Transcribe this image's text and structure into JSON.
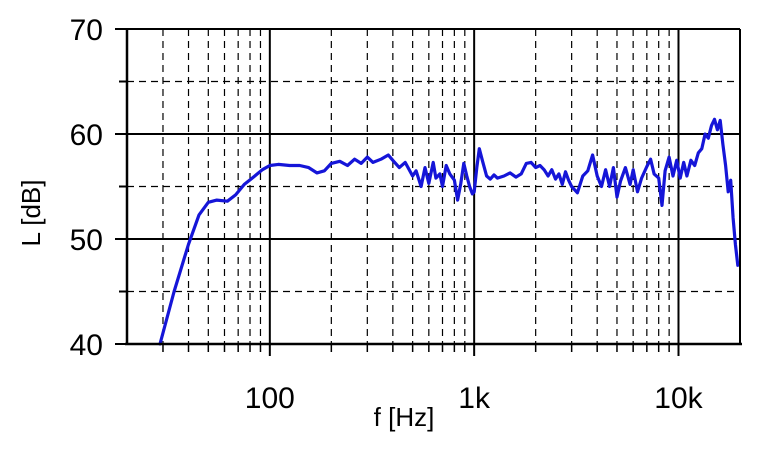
{
  "chart_data": {
    "type": "line",
    "xscale": "log",
    "xlim": [
      20,
      20000
    ],
    "ylim": [
      40,
      70
    ],
    "xlabel": "f [Hz]",
    "ylabel": "L [dB]",
    "x_tick_labels": [
      {
        "value": 100,
        "label": "100"
      },
      {
        "value": 1000,
        "label": "1k"
      },
      {
        "value": 10000,
        "label": "10k"
      }
    ],
    "y_tick_labels": [
      {
        "value": 40,
        "label": "40"
      },
      {
        "value": 50,
        "label": "50"
      },
      {
        "value": 60,
        "label": "60"
      },
      {
        "value": 70,
        "label": "70"
      }
    ],
    "grid": {
      "major_solid": true,
      "minor_dashed": true
    },
    "series": [
      {
        "color": "#1515d8",
        "points": [
          [
            29,
            40.0
          ],
          [
            34,
            45.0
          ],
          [
            40,
            49.5
          ],
          [
            45,
            52.3
          ],
          [
            50,
            53.5
          ],
          [
            55,
            53.7
          ],
          [
            62,
            53.6
          ],
          [
            68,
            54.2
          ],
          [
            75,
            55.2
          ],
          [
            82,
            55.8
          ],
          [
            92,
            56.6
          ],
          [
            100,
            57.0
          ],
          [
            110,
            57.1
          ],
          [
            125,
            57.0
          ],
          [
            140,
            57.0
          ],
          [
            155,
            56.8
          ],
          [
            170,
            56.3
          ],
          [
            185,
            56.5
          ],
          [
            200,
            57.2
          ],
          [
            220,
            57.4
          ],
          [
            240,
            57.0
          ],
          [
            260,
            57.6
          ],
          [
            280,
            57.2
          ],
          [
            300,
            57.8
          ],
          [
            320,
            57.3
          ],
          [
            350,
            57.6
          ],
          [
            380,
            58.0
          ],
          [
            400,
            57.5
          ],
          [
            430,
            56.8
          ],
          [
            460,
            57.3
          ],
          [
            500,
            56.0
          ],
          [
            520,
            56.5
          ],
          [
            550,
            55.0
          ],
          [
            575,
            56.8
          ],
          [
            600,
            55.3
          ],
          [
            630,
            57.3
          ],
          [
            650,
            55.8
          ],
          [
            680,
            56.2
          ],
          [
            700,
            55.0
          ],
          [
            730,
            57.0
          ],
          [
            760,
            56.2
          ],
          [
            800,
            55.6
          ],
          [
            830,
            53.7
          ],
          [
            860,
            55.3
          ],
          [
            890,
            57.2
          ],
          [
            920,
            56.0
          ],
          [
            950,
            55.0
          ],
          [
            980,
            54.3
          ],
          [
            1000,
            54.5
          ],
          [
            1030,
            56.8
          ],
          [
            1060,
            58.6
          ],
          [
            1100,
            57.4
          ],
          [
            1150,
            56.0
          ],
          [
            1200,
            55.7
          ],
          [
            1250,
            56.1
          ],
          [
            1300,
            55.8
          ],
          [
            1400,
            56.0
          ],
          [
            1500,
            56.3
          ],
          [
            1600,
            55.9
          ],
          [
            1700,
            56.2
          ],
          [
            1800,
            57.2
          ],
          [
            1900,
            57.3
          ],
          [
            2000,
            56.8
          ],
          [
            2100,
            57.0
          ],
          [
            2200,
            56.6
          ],
          [
            2300,
            56.0
          ],
          [
            2400,
            56.6
          ],
          [
            2500,
            55.7
          ],
          [
            2600,
            56.2
          ],
          [
            2700,
            55.2
          ],
          [
            2800,
            56.4
          ],
          [
            2900,
            55.6
          ],
          [
            3000,
            55.0
          ],
          [
            3200,
            54.4
          ],
          [
            3400,
            56.0
          ],
          [
            3600,
            56.5
          ],
          [
            3800,
            58.0
          ],
          [
            4000,
            56.0
          ],
          [
            4200,
            55.0
          ],
          [
            4400,
            56.6
          ],
          [
            4600,
            55.0
          ],
          [
            4800,
            56.8
          ],
          [
            5000,
            54.0
          ],
          [
            5200,
            55.5
          ],
          [
            5500,
            56.8
          ],
          [
            5800,
            55.2
          ],
          [
            6000,
            56.6
          ],
          [
            6300,
            54.5
          ],
          [
            6600,
            55.8
          ],
          [
            7000,
            56.9
          ],
          [
            7300,
            57.6
          ],
          [
            7600,
            56.2
          ],
          [
            8000,
            55.8
          ],
          [
            8300,
            53.2
          ],
          [
            8600,
            56.5
          ],
          [
            9000,
            57.8
          ],
          [
            9400,
            56.0
          ],
          [
            9800,
            57.5
          ],
          [
            10200,
            55.8
          ],
          [
            10600,
            57.3
          ],
          [
            11000,
            56.0
          ],
          [
            11500,
            57.5
          ],
          [
            12000,
            57.0
          ],
          [
            12500,
            58.2
          ],
          [
            13000,
            58.6
          ],
          [
            13500,
            60.0
          ],
          [
            14000,
            59.6
          ],
          [
            14500,
            60.8
          ],
          [
            15000,
            61.4
          ],
          [
            15500,
            60.4
          ],
          [
            16000,
            61.3
          ],
          [
            16500,
            59.0
          ],
          [
            17000,
            57.0
          ],
          [
            17500,
            54.5
          ],
          [
            18000,
            55.6
          ],
          [
            18500,
            52.0
          ],
          [
            19000,
            49.5
          ],
          [
            19500,
            47.5
          ]
        ]
      }
    ]
  }
}
